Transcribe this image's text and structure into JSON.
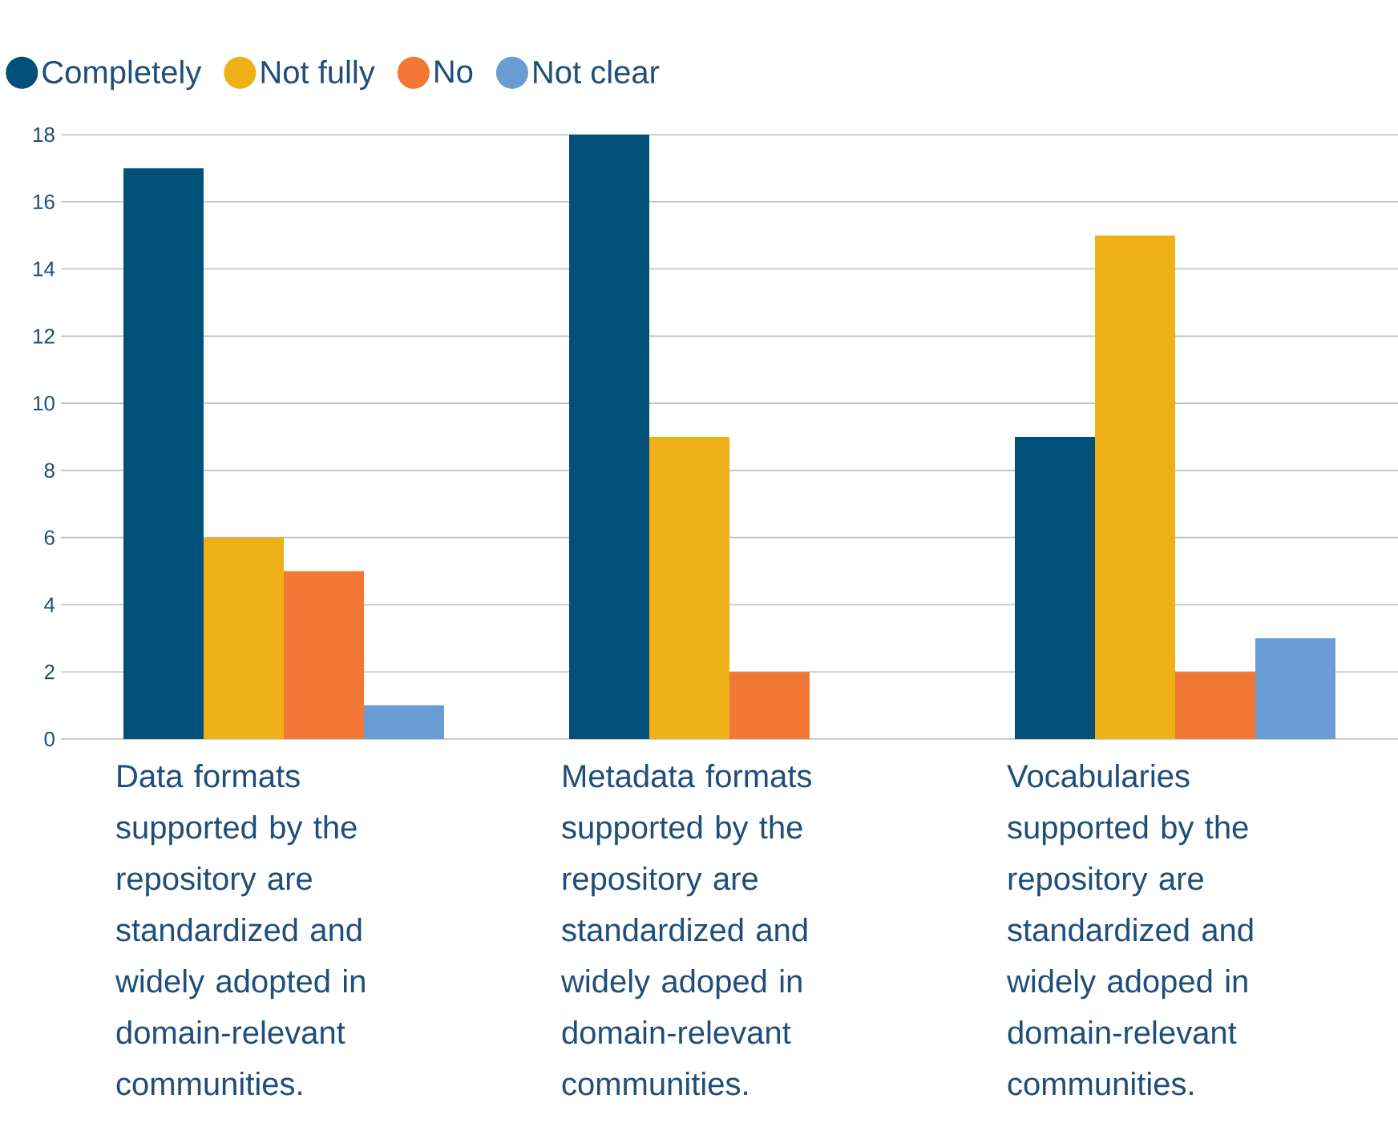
{
  "chart_data": {
    "type": "bar",
    "categories": [
      "Data formats supported by the repository are standardized and widely adopted in domain-relevant communities.",
      "Metadata formats supported by the repository are standardized and widely adoped in domain-relevant communities.",
      "Vocabularies supported by the repository are standardized and widely adoped in domain-relevant communities."
    ],
    "series": [
      {
        "name": "Completely",
        "color": "#00507a",
        "values": [
          17,
          18,
          9
        ]
      },
      {
        "name": "Not fully",
        "color": "#eeb016",
        "values": [
          6,
          9,
          15
        ]
      },
      {
        "name": "No",
        "color": "#f37735",
        "values": [
          5,
          2,
          2
        ]
      },
      {
        "name": "Not clear",
        "color": "#6a9cd4",
        "values": [
          1,
          0,
          3
        ]
      }
    ],
    "ylim": [
      0,
      18
    ],
    "yticks": [
      0,
      2,
      4,
      6,
      8,
      10,
      12,
      14,
      16,
      18
    ],
    "grid": "y",
    "legend": "top left"
  }
}
